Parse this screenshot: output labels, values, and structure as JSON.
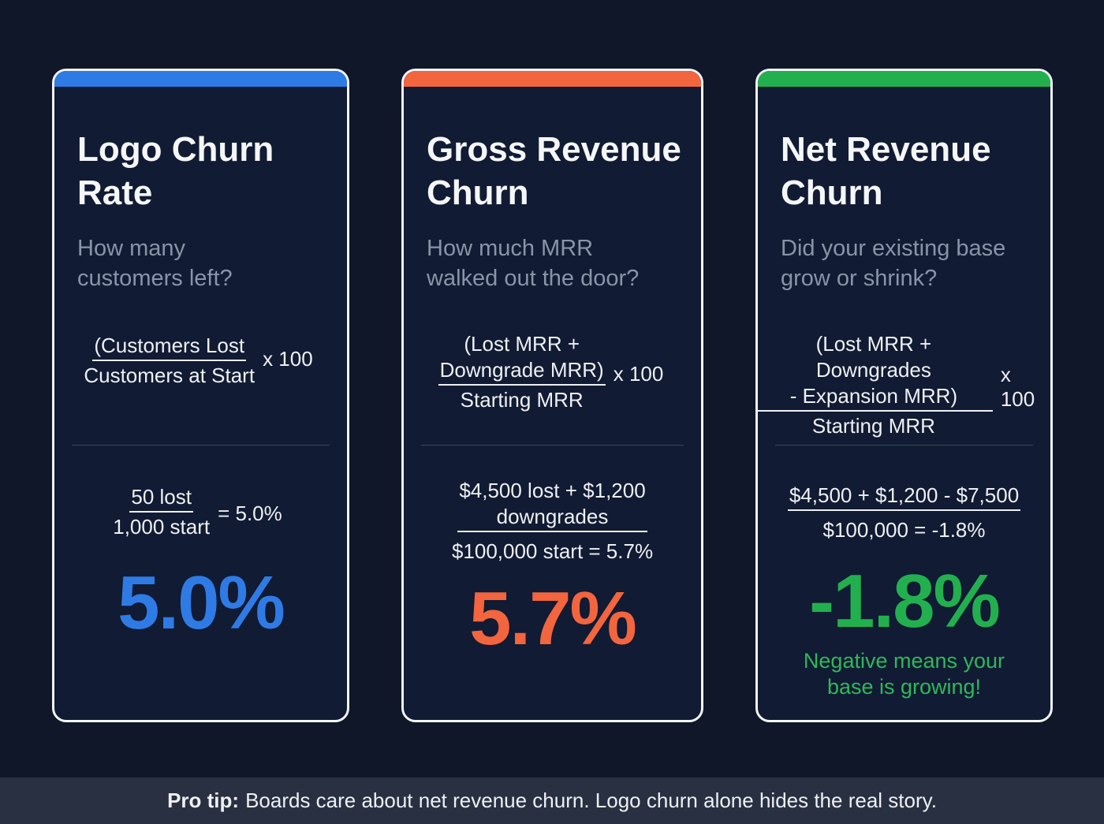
{
  "cards": [
    {
      "title_l1": "Logo Churn",
      "title_l2": "Rate",
      "sub_l1": "How many",
      "sub_l2": "customers left?",
      "formula_num": "(Customers Lost",
      "formula_den": "Customers at Start",
      "formula_mult": "x 100",
      "example_num": "50 lost",
      "example_den": "1,000 start",
      "example_result": "= 5.0%",
      "value": "5.0%",
      "accent": "#2f7be6"
    },
    {
      "title_l1": "Gross Revenue",
      "title_l2": "Churn",
      "sub_l1": "How much MRR",
      "sub_l2": "walked out the door?",
      "formula_num_l1": "(Lost MRR +",
      "formula_num_l2": "Downgrade MRR)",
      "formula_den": "Starting MRR",
      "formula_mult": "x 100",
      "example_num_l1": "$4,500 lost + $1,200",
      "example_num_l2": "downgrades",
      "example_den": "$100,000 start = 5.7%",
      "value": "5.7%",
      "accent": "#f2653e"
    },
    {
      "title_l1": "Net Revenue",
      "title_l2": "Churn",
      "sub_l1": "Did your existing base",
      "sub_l2": "grow or shrink?",
      "formula_num_l1": "(Lost MRR + Downgrades",
      "formula_num_l2": "- Expansion MRR)",
      "formula_den": "Starting MRR",
      "formula_mult": "x 100",
      "example_num": "$4,500 + $1,200 - $7,500",
      "example_den": "$100,000 = -1.8%",
      "value": "-1.8%",
      "note_l1": "Negative means your",
      "note_l2": "base is growing!",
      "accent": "#22b04f"
    }
  ],
  "footer": {
    "label": "Pro tip:",
    "text": "Boards care about net revenue churn. Logo churn alone hides the real story."
  }
}
